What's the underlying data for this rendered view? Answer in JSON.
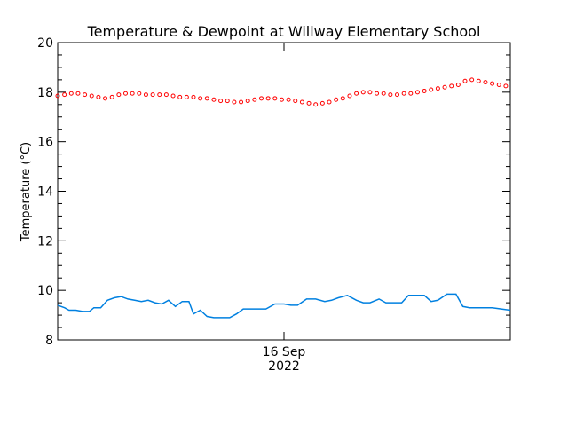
{
  "chart_data": {
    "type": "line",
    "title": "Temperature & Dewpoint at Willway Elementary School",
    "ylabel": "Temperature (°C)",
    "xlabel": "",
    "ylim": [
      8,
      20
    ],
    "yticks": [
      8,
      10,
      12,
      14,
      16,
      18,
      20
    ],
    "ytick_labels": [
      "8",
      "10",
      "12",
      "14",
      "16",
      "18",
      "20"
    ],
    "xlim": [
      0,
      100
    ],
    "xticks": [
      50
    ],
    "xtick_labels": [
      {
        "day": "16 Sep",
        "year": "2022"
      }
    ],
    "grid": false,
    "series": [
      {
        "key": "temperature",
        "style": "dotted",
        "color": "#ff0000",
        "x": [
          0,
          1.5,
          3,
          4.5,
          6,
          7.5,
          9,
          10.5,
          12,
          13.5,
          15,
          16.5,
          18,
          19.5,
          21,
          22.5,
          24,
          25.5,
          27,
          28.5,
          30,
          31.5,
          33,
          34.5,
          36,
          37.5,
          39,
          40.5,
          42,
          43.5,
          45,
          46.5,
          48,
          49.5,
          51,
          52.5,
          54,
          55.5,
          57,
          58.5,
          60,
          61.5,
          63,
          64.5,
          66,
          67.5,
          69,
          70.5,
          72,
          73.5,
          75,
          76.5,
          78,
          79.5,
          81,
          82.5,
          84,
          85.5,
          87,
          88.5,
          90,
          91.5,
          93,
          94.5,
          96,
          97.5,
          99
        ],
        "values": [
          17.85,
          17.9,
          17.95,
          17.95,
          17.9,
          17.85,
          17.8,
          17.75,
          17.8,
          17.9,
          17.95,
          17.95,
          17.95,
          17.9,
          17.9,
          17.9,
          17.9,
          17.85,
          17.8,
          17.8,
          17.8,
          17.75,
          17.75,
          17.7,
          17.65,
          17.65,
          17.6,
          17.6,
          17.65,
          17.7,
          17.75,
          17.75,
          17.75,
          17.7,
          17.7,
          17.65,
          17.6,
          17.55,
          17.5,
          17.55,
          17.6,
          17.7,
          17.75,
          17.85,
          17.95,
          18.0,
          18.0,
          17.95,
          17.95,
          17.9,
          17.9,
          17.95,
          17.95,
          18.0,
          18.05,
          18.1,
          18.15,
          18.2,
          18.25,
          18.3,
          18.45,
          18.5,
          18.45,
          18.4,
          18.35,
          18.3,
          18.25
        ]
      },
      {
        "key": "dewpoint",
        "style": "solid",
        "color": "#0080e0",
        "x": [
          0,
          1.5,
          2.5,
          4,
          5.5,
          7,
          8,
          9.5,
          11,
          12.5,
          14,
          15.5,
          17,
          18.5,
          20,
          21.5,
          23,
          24.5,
          26,
          27.5,
          29,
          30,
          31.5,
          33,
          34.5,
          36,
          38,
          39.5,
          41,
          42.5,
          44,
          46,
          48,
          50,
          51.5,
          53,
          55,
          57,
          59,
          60.5,
          62,
          64,
          66,
          67.5,
          69,
          71,
          72.5,
          74,
          76,
          77.5,
          79,
          81,
          82.5,
          84,
          86,
          88,
          89.5,
          91,
          92.5,
          94,
          96,
          98,
          100
        ],
        "values": [
          9.4,
          9.3,
          9.2,
          9.2,
          9.15,
          9.15,
          9.3,
          9.3,
          9.6,
          9.7,
          9.75,
          9.65,
          9.6,
          9.55,
          9.6,
          9.5,
          9.45,
          9.6,
          9.35,
          9.55,
          9.55,
          9.05,
          9.2,
          8.95,
          8.9,
          8.9,
          8.9,
          9.05,
          9.25,
          9.25,
          9.25,
          9.25,
          9.45,
          9.45,
          9.4,
          9.4,
          9.65,
          9.65,
          9.55,
          9.6,
          9.7,
          9.8,
          9.6,
          9.5,
          9.5,
          9.65,
          9.5,
          9.5,
          9.5,
          9.8,
          9.8,
          9.8,
          9.55,
          9.6,
          9.85,
          9.85,
          9.35,
          9.3,
          9.3,
          9.3,
          9.3,
          9.25,
          9.2
        ]
      }
    ]
  }
}
